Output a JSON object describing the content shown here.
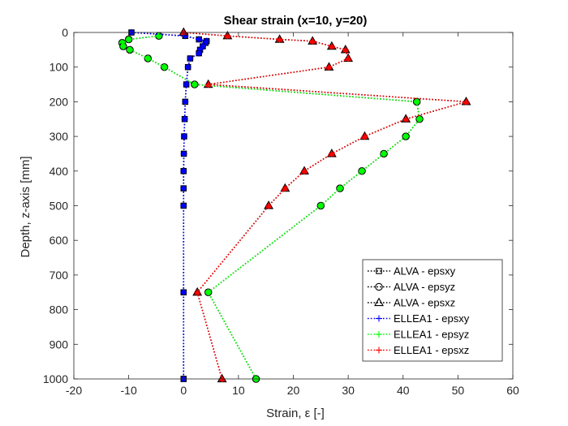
{
  "chart_data": {
    "type": "line",
    "title": "Shear strain (x=10, y=20)",
    "xlabel": "Strain, ε [-]",
    "ylabel": "Depth, z-axis [mm]",
    "xlim": [
      -20,
      60
    ],
    "ylim": [
      0,
      1000
    ],
    "y_reversed": true,
    "xticks": [
      -20,
      -10,
      0,
      10,
      20,
      30,
      40,
      50,
      60
    ],
    "yticks": [
      0,
      100,
      200,
      300,
      400,
      500,
      600,
      700,
      800,
      900,
      1000
    ],
    "grid": false,
    "legend_position": "lower-right",
    "series": [
      {
        "name": "ALVA - epsxy",
        "color": "#000000",
        "marker": "square",
        "line_style": "dotted",
        "x": [
          -9.5,
          0.3,
          2.8,
          4.2,
          4.0,
          3.5,
          3.0,
          2.8,
          1.2,
          0.8,
          0.5,
          0.3,
          0.2,
          0.1,
          0.05,
          0.0,
          0.0,
          0.0,
          0.0,
          0.0,
          0.0
        ],
        "y": [
          0,
          10,
          20,
          25,
          30,
          40,
          50,
          60,
          75,
          100,
          150,
          200,
          250,
          300,
          350,
          400,
          450,
          500,
          750,
          1000,
          1000
        ]
      },
      {
        "name": "ALVA - epsyz",
        "color": "#000000",
        "marker": "circle",
        "line_style": "dotted",
        "x": [
          -4.5,
          -10.0,
          -11.2,
          -11.0,
          -9.8,
          -6.5,
          -3.5,
          2.0,
          42.5,
          43.0,
          40.5,
          36.5,
          32.5,
          28.5,
          25.0,
          4.5,
          13.2
        ],
        "y": [
          10,
          20,
          30,
          40,
          50,
          75,
          100,
          150,
          200,
          250,
          300,
          350,
          400,
          450,
          500,
          750,
          1000
        ]
      },
      {
        "name": "ALVA - epsxz",
        "color": "#000000",
        "marker": "triangle",
        "line_style": "dotted",
        "x": [
          0.0,
          8.0,
          17.5,
          23.5,
          27.0,
          29.5,
          30.0,
          26.5,
          4.5,
          51.5,
          40.5,
          33.0,
          27.0,
          22.0,
          18.5,
          15.5,
          2.5,
          7.0
        ],
        "y": [
          0,
          10,
          20,
          25,
          40,
          50,
          75,
          100,
          150,
          200,
          250,
          300,
          350,
          400,
          450,
          500,
          750,
          1000
        ]
      },
      {
        "name": "ELLEA1 - epsxy",
        "color": "#0000ff",
        "marker": "plus",
        "line_style": "dotted",
        "x": [
          -9.5,
          0.3,
          2.8,
          4.2,
          4.0,
          3.5,
          3.0,
          2.8,
          1.2,
          0.8,
          0.5,
          0.3,
          0.2,
          0.1,
          0.05,
          0.0,
          0.0,
          0.0,
          0.0,
          0.0
        ],
        "y": [
          0,
          10,
          20,
          25,
          30,
          40,
          50,
          60,
          75,
          100,
          150,
          200,
          250,
          300,
          350,
          400,
          450,
          500,
          750,
          1000
        ]
      },
      {
        "name": "ELLEA1 - epsyz",
        "color": "#00ff00",
        "marker": "plus",
        "line_style": "dotted",
        "x": [
          -4.5,
          -10.0,
          -11.2,
          -11.0,
          -9.8,
          -6.5,
          -3.5,
          2.0,
          42.5,
          43.0,
          40.5,
          36.5,
          32.5,
          28.5,
          25.0,
          4.5,
          13.2
        ],
        "y": [
          10,
          20,
          30,
          40,
          50,
          75,
          100,
          150,
          200,
          250,
          300,
          350,
          400,
          450,
          500,
          750,
          1000
        ]
      },
      {
        "name": "ELLEA1 - epsxz",
        "color": "#ff0000",
        "marker": "plus",
        "line_style": "dotted",
        "x": [
          0.0,
          8.0,
          17.5,
          23.5,
          27.0,
          29.5,
          30.0,
          26.5,
          4.5,
          51.5,
          40.5,
          33.0,
          27.0,
          22.0,
          18.5,
          15.5,
          2.5,
          7.0
        ],
        "y": [
          0,
          10,
          20,
          25,
          40,
          50,
          75,
          100,
          150,
          200,
          250,
          300,
          350,
          400,
          450,
          500,
          750,
          1000
        ]
      }
    ]
  }
}
